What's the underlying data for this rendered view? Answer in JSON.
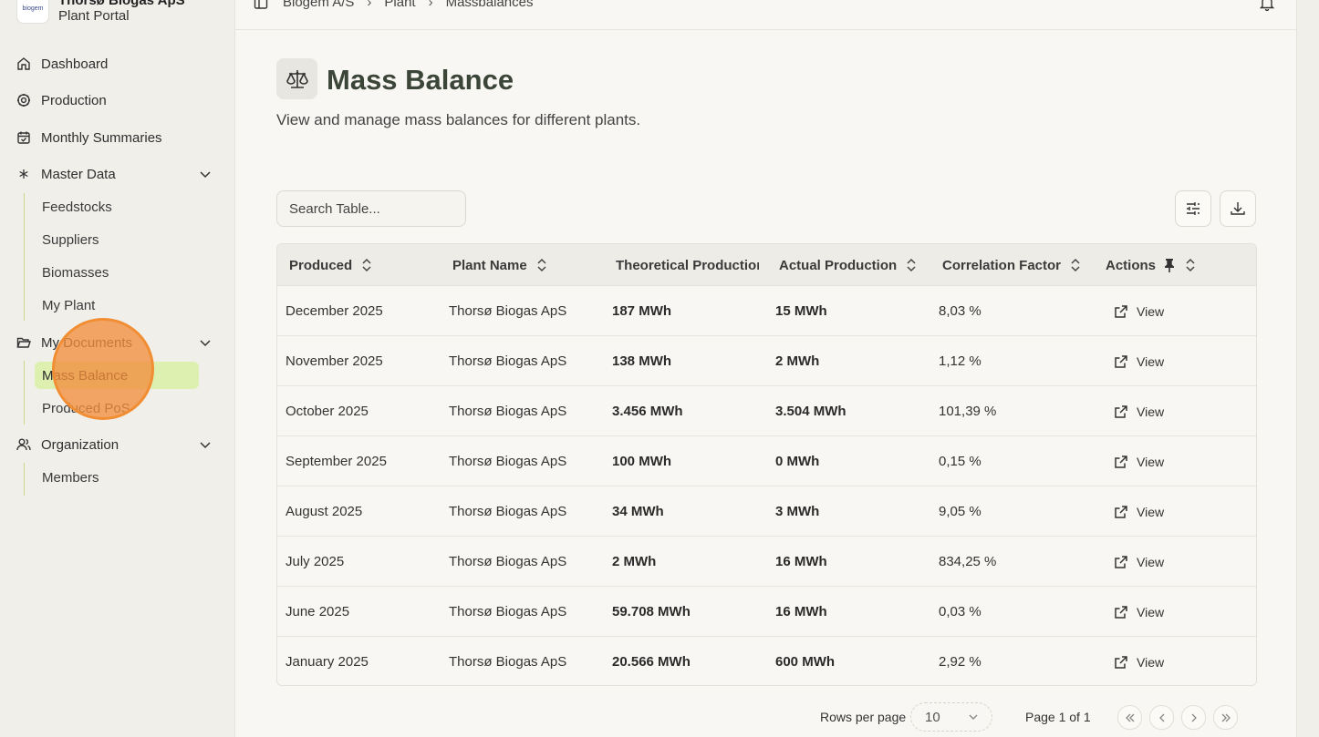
{
  "brand": {
    "logo_text": "biogem",
    "org_name": "Thorsø Biogas ApS",
    "subtitle": "Plant Portal"
  },
  "sidebar": {
    "items": [
      {
        "label": "Dashboard",
        "icon": "home-icon"
      },
      {
        "label": "Production",
        "icon": "gear-icon"
      },
      {
        "label": "Monthly Summaries",
        "icon": "calendar-check-icon"
      },
      {
        "label": "Master Data",
        "icon": "asterisk-icon",
        "children": [
          "Feedstocks",
          "Suppliers",
          "Biomasses",
          "My Plant"
        ]
      },
      {
        "label": "My Documents",
        "icon": "folder-open-icon",
        "children": [
          "Mass Balance",
          "Produced PoS"
        ]
      },
      {
        "label": "Organization",
        "icon": "users-icon",
        "children": [
          "Members"
        ]
      }
    ],
    "active": "Mass Balance"
  },
  "breadcrumb": [
    "Biogem A/S",
    "Plant",
    "Massbalances"
  ],
  "page": {
    "title": "Mass Balance",
    "description": "View and manage mass balances for different plants."
  },
  "search": {
    "placeholder": "Search Table..."
  },
  "table": {
    "columns": [
      "Produced",
      "Plant Name",
      "Theoretical Production",
      "Actual Production",
      "Correlation Factor",
      "Actions"
    ],
    "rows": [
      {
        "produced": "December 2025",
        "plant": "Thorsø Biogas ApS",
        "theoretical": "187 MWh",
        "actual": "15 MWh",
        "factor": "8,03 %",
        "action": "View"
      },
      {
        "produced": "November 2025",
        "plant": "Thorsø Biogas ApS",
        "theoretical": "138 MWh",
        "actual": "2 MWh",
        "factor": "1,12 %",
        "action": "View"
      },
      {
        "produced": "October 2025",
        "plant": "Thorsø Biogas ApS",
        "theoretical": "3.456 MWh",
        "actual": "3.504 MWh",
        "factor": "101,39 %",
        "action": "View"
      },
      {
        "produced": "September 2025",
        "plant": "Thorsø Biogas ApS",
        "theoretical": "100 MWh",
        "actual": "0 MWh",
        "factor": "0,15 %",
        "action": "View"
      },
      {
        "produced": "August 2025",
        "plant": "Thorsø Biogas ApS",
        "theoretical": "34 MWh",
        "actual": "3 MWh",
        "factor": "9,05 %",
        "action": "View"
      },
      {
        "produced": "July 2025",
        "plant": "Thorsø Biogas ApS",
        "theoretical": "2 MWh",
        "actual": "16 MWh",
        "factor": "834,25 %",
        "action": "View"
      },
      {
        "produced": "June 2025",
        "plant": "Thorsø Biogas ApS",
        "theoretical": "59.708 MWh",
        "actual": "16 MWh",
        "factor": "0,03 %",
        "action": "View"
      },
      {
        "produced": "January 2025",
        "plant": "Thorsø Biogas ApS",
        "theoretical": "20.566 MWh",
        "actual": "600 MWh",
        "factor": "2,92 %",
        "action": "View"
      }
    ]
  },
  "pagination": {
    "rows_label": "Rows per page",
    "rows_value": "10",
    "page_label": "Page 1 of 1"
  },
  "colors": {
    "accent": "#def0b0",
    "sidebar_bg": "#f1efea",
    "main_bg": "#f9f7f3",
    "title": "#3b4538",
    "cursor": "#f28e3e"
  }
}
